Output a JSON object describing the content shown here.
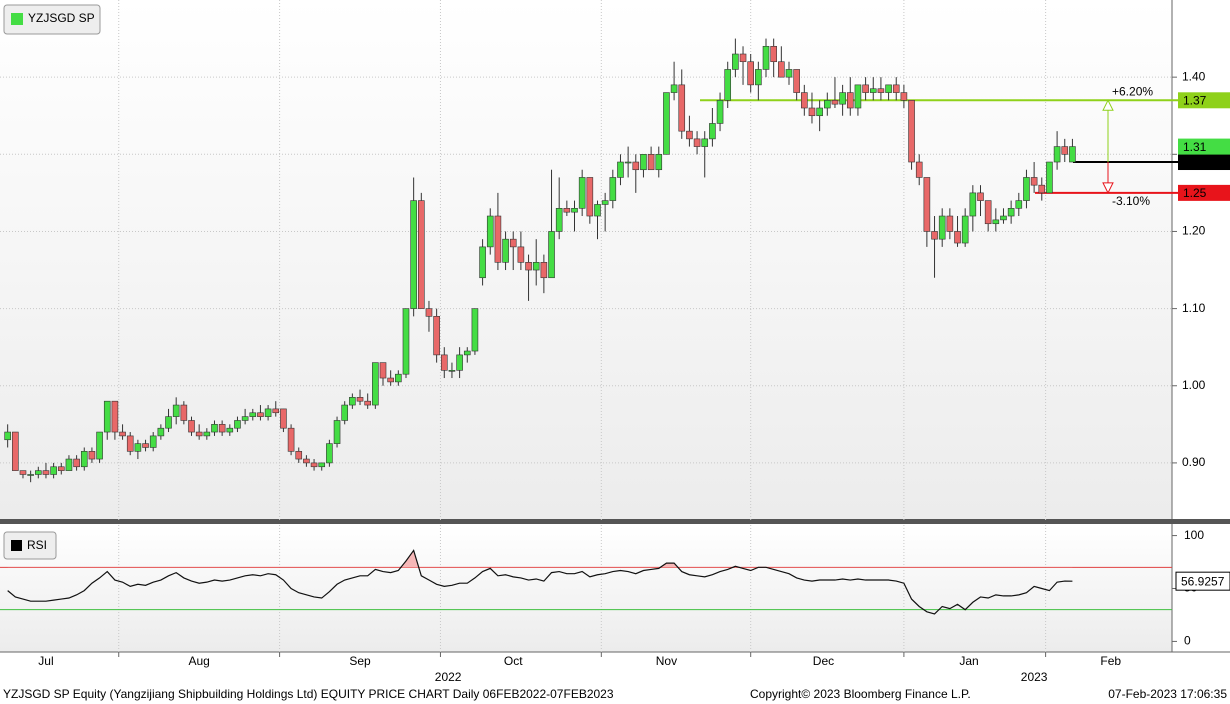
{
  "chart_data": {
    "type": "candlestick",
    "legend": "YZJSGD SP",
    "up_color": "#44dd44",
    "down_color": "#e86868",
    "xlim": [
      -1,
      152
    ],
    "xticks": [
      {
        "value": 5,
        "label": "Jul"
      },
      {
        "value": 25,
        "label": "Aug"
      },
      {
        "value": 46,
        "label": "Sep"
      },
      {
        "value": 66,
        "label": "Oct"
      },
      {
        "value": 86,
        "label": "Nov"
      },
      {
        "value": 106.5,
        "label": "Dec"
      },
      {
        "value": 125.5,
        "label": "Jan"
      },
      {
        "value": 144,
        "label": "Feb"
      }
    ],
    "years": [
      {
        "value": 57.5,
        "label": "2022"
      },
      {
        "value": 134,
        "label": "2023"
      }
    ],
    "xgrid": [
      14.5,
      35.5,
      56.5,
      77.5,
      97,
      117,
      135.5
    ],
    "ylim": [
      0.826,
      1.5
    ],
    "yticks": [
      {
        "value": 0.9,
        "label": "0.90"
      },
      {
        "value": 1.0,
        "label": "1.00"
      },
      {
        "value": 1.1,
        "label": "1.10"
      },
      {
        "value": 1.2,
        "label": "1.20"
      },
      {
        "value": 1.3,
        "label": "1.30"
      },
      {
        "value": 1.4,
        "label": "1.40"
      }
    ],
    "grid": true,
    "ohlc": [
      [
        0.93,
        0.95,
        0.92,
        0.94
      ],
      [
        0.94,
        0.94,
        0.89,
        0.89
      ],
      [
        0.89,
        0.89,
        0.88,
        0.885
      ],
      [
        0.885,
        0.89,
        0.875,
        0.885
      ],
      [
        0.885,
        0.895,
        0.88,
        0.89
      ],
      [
        0.89,
        0.9,
        0.88,
        0.885
      ],
      [
        0.885,
        0.9,
        0.88,
        0.895
      ],
      [
        0.895,
        0.9,
        0.885,
        0.89
      ],
      [
        0.89,
        0.91,
        0.89,
        0.905
      ],
      [
        0.905,
        0.91,
        0.89,
        0.895
      ],
      [
        0.895,
        0.92,
        0.89,
        0.915
      ],
      [
        0.915,
        0.92,
        0.9,
        0.905
      ],
      [
        0.905,
        0.94,
        0.9,
        0.94
      ],
      [
        0.94,
        0.98,
        0.93,
        0.98
      ],
      [
        0.98,
        0.98,
        0.93,
        0.94
      ],
      [
        0.94,
        0.95,
        0.93,
        0.935
      ],
      [
        0.935,
        0.94,
        0.91,
        0.915
      ],
      [
        0.915,
        0.93,
        0.905,
        0.925
      ],
      [
        0.925,
        0.93,
        0.915,
        0.92
      ],
      [
        0.92,
        0.94,
        0.915,
        0.935
      ],
      [
        0.935,
        0.95,
        0.93,
        0.945
      ],
      [
        0.945,
        0.97,
        0.94,
        0.96
      ],
      [
        0.96,
        0.985,
        0.95,
        0.975
      ],
      [
        0.975,
        0.98,
        0.95,
        0.955
      ],
      [
        0.955,
        0.96,
        0.935,
        0.94
      ],
      [
        0.94,
        0.95,
        0.93,
        0.935
      ],
      [
        0.935,
        0.945,
        0.93,
        0.94
      ],
      [
        0.94,
        0.955,
        0.935,
        0.95
      ],
      [
        0.95,
        0.955,
        0.935,
        0.94
      ],
      [
        0.94,
        0.95,
        0.935,
        0.945
      ],
      [
        0.945,
        0.96,
        0.94,
        0.955
      ],
      [
        0.955,
        0.97,
        0.95,
        0.96
      ],
      [
        0.96,
        0.97,
        0.955,
        0.965
      ],
      [
        0.965,
        0.975,
        0.955,
        0.96
      ],
      [
        0.96,
        0.975,
        0.955,
        0.97
      ],
      [
        0.97,
        0.98,
        0.96,
        0.965
      ],
      [
        0.97,
        0.97,
        0.94,
        0.945
      ],
      [
        0.945,
        0.95,
        0.91,
        0.915
      ],
      [
        0.915,
        0.92,
        0.9,
        0.905
      ],
      [
        0.905,
        0.91,
        0.895,
        0.9
      ],
      [
        0.9,
        0.905,
        0.89,
        0.895
      ],
      [
        0.895,
        0.9,
        0.89,
        0.9
      ],
      [
        0.9,
        0.93,
        0.895,
        0.925
      ],
      [
        0.925,
        0.96,
        0.92,
        0.955
      ],
      [
        0.955,
        0.98,
        0.95,
        0.975
      ],
      [
        0.975,
        0.99,
        0.97,
        0.985
      ],
      [
        0.985,
        0.995,
        0.975,
        0.98
      ],
      [
        0.98,
        0.99,
        0.97,
        0.975
      ],
      [
        0.975,
        1.03,
        0.97,
        1.03
      ],
      [
        1.03,
        1.03,
        1.0,
        1.01
      ],
      [
        1.01,
        1.02,
        1.0,
        1.005
      ],
      [
        1.005,
        1.02,
        1.0,
        1.015
      ],
      [
        1.015,
        1.1,
        1.01,
        1.1
      ],
      [
        1.1,
        1.27,
        1.09,
        1.24
      ],
      [
        1.24,
        1.25,
        1.1,
        1.1
      ],
      [
        1.1,
        1.11,
        1.07,
        1.09
      ],
      [
        1.09,
        1.1,
        1.03,
        1.04
      ],
      [
        1.04,
        1.05,
        1.01,
        1.02
      ],
      [
        1.02,
        1.03,
        1.01,
        1.02
      ],
      [
        1.02,
        1.05,
        1.01,
        1.04
      ],
      [
        1.04,
        1.05,
        1.03,
        1.045
      ],
      [
        1.045,
        1.1,
        1.04,
        1.1
      ],
      [
        1.14,
        1.19,
        1.13,
        1.18
      ],
      [
        1.18,
        1.23,
        1.17,
        1.22
      ],
      [
        1.22,
        1.25,
        1.15,
        1.16
      ],
      [
        1.16,
        1.2,
        1.15,
        1.19
      ],
      [
        1.19,
        1.2,
        1.15,
        1.18
      ],
      [
        1.18,
        1.2,
        1.15,
        1.16
      ],
      [
        1.16,
        1.17,
        1.11,
        1.15
      ],
      [
        1.15,
        1.19,
        1.13,
        1.16
      ],
      [
        1.16,
        1.17,
        1.12,
        1.14
      ],
      [
        1.14,
        1.28,
        1.14,
        1.2
      ],
      [
        1.2,
        1.27,
        1.19,
        1.23
      ],
      [
        1.23,
        1.24,
        1.22,
        1.225
      ],
      [
        1.225,
        1.24,
        1.2,
        1.23
      ],
      [
        1.23,
        1.28,
        1.22,
        1.27
      ],
      [
        1.27,
        1.27,
        1.21,
        1.22
      ],
      [
        1.22,
        1.24,
        1.19,
        1.235
      ],
      [
        1.235,
        1.25,
        1.2,
        1.24
      ],
      [
        1.24,
        1.28,
        1.23,
        1.27
      ],
      [
        1.27,
        1.3,
        1.26,
        1.29
      ],
      [
        1.29,
        1.31,
        1.27,
        1.29
      ],
      [
        1.29,
        1.3,
        1.25,
        1.28
      ],
      [
        1.28,
        1.3,
        1.27,
        1.3
      ],
      [
        1.3,
        1.31,
        1.28,
        1.28
      ],
      [
        1.28,
        1.31,
        1.27,
        1.3
      ],
      [
        1.3,
        1.38,
        1.3,
        1.38
      ],
      [
        1.38,
        1.42,
        1.37,
        1.39
      ],
      [
        1.39,
        1.41,
        1.32,
        1.33
      ],
      [
        1.33,
        1.35,
        1.31,
        1.32
      ],
      [
        1.32,
        1.33,
        1.3,
        1.31
      ],
      [
        1.31,
        1.33,
        1.27,
        1.32
      ],
      [
        1.32,
        1.36,
        1.31,
        1.34
      ],
      [
        1.34,
        1.38,
        1.33,
        1.37
      ],
      [
        1.37,
        1.42,
        1.36,
        1.41
      ],
      [
        1.41,
        1.45,
        1.4,
        1.43
      ],
      [
        1.43,
        1.44,
        1.39,
        1.42
      ],
      [
        1.42,
        1.43,
        1.38,
        1.39
      ],
      [
        1.39,
        1.42,
        1.37,
        1.41
      ],
      [
        1.41,
        1.45,
        1.4,
        1.44
      ],
      [
        1.44,
        1.45,
        1.4,
        1.42
      ],
      [
        1.42,
        1.44,
        1.4,
        1.4
      ],
      [
        1.4,
        1.42,
        1.39,
        1.41
      ],
      [
        1.41,
        1.41,
        1.37,
        1.38
      ],
      [
        1.38,
        1.39,
        1.35,
        1.36
      ],
      [
        1.36,
        1.38,
        1.34,
        1.35
      ],
      [
        1.35,
        1.37,
        1.33,
        1.36
      ],
      [
        1.36,
        1.38,
        1.35,
        1.37
      ],
      [
        1.37,
        1.4,
        1.36,
        1.365
      ],
      [
        1.365,
        1.39,
        1.35,
        1.38
      ],
      [
        1.38,
        1.4,
        1.35,
        1.36
      ],
      [
        1.36,
        1.39,
        1.35,
        1.39
      ],
      [
        1.39,
        1.4,
        1.37,
        1.38
      ],
      [
        1.38,
        1.4,
        1.37,
        1.385
      ],
      [
        1.385,
        1.4,
        1.37,
        1.38
      ],
      [
        1.38,
        1.39,
        1.37,
        1.39
      ],
      [
        1.39,
        1.4,
        1.37,
        1.38
      ],
      [
        1.38,
        1.39,
        1.36,
        1.37
      ],
      [
        1.37,
        1.37,
        1.28,
        1.29
      ],
      [
        1.29,
        1.3,
        1.26,
        1.27
      ],
      [
        1.27,
        1.27,
        1.18,
        1.2
      ],
      [
        1.2,
        1.22,
        1.14,
        1.19
      ],
      [
        1.19,
        1.23,
        1.18,
        1.22
      ],
      [
        1.22,
        1.23,
        1.19,
        1.2
      ],
      [
        1.2,
        1.22,
        1.18,
        1.185
      ],
      [
        1.185,
        1.23,
        1.18,
        1.22
      ],
      [
        1.22,
        1.26,
        1.2,
        1.25
      ],
      [
        1.25,
        1.26,
        1.22,
        1.24
      ],
      [
        1.24,
        1.24,
        1.2,
        1.21
      ],
      [
        1.21,
        1.23,
        1.2,
        1.215
      ],
      [
        1.215,
        1.23,
        1.21,
        1.22
      ],
      [
        1.22,
        1.24,
        1.21,
        1.23
      ],
      [
        1.23,
        1.25,
        1.22,
        1.24
      ],
      [
        1.24,
        1.28,
        1.23,
        1.27
      ],
      [
        1.27,
        1.29,
        1.25,
        1.26
      ],
      [
        1.26,
        1.27,
        1.24,
        1.25
      ],
      [
        1.25,
        1.29,
        1.25,
        1.29
      ],
      [
        1.29,
        1.33,
        1.28,
        1.31
      ],
      [
        1.31,
        1.32,
        1.29,
        1.3
      ],
      [
        1.29,
        1.32,
        1.29,
        1.31
      ]
    ],
    "last_price": 1.31,
    "levels": [
      {
        "value": 1.37,
        "color": "#8fd11a"
      },
      {
        "value": 1.29,
        "color": "#000000"
      },
      {
        "value": 1.25,
        "color": "#e8141b"
      }
    ],
    "annotations": [
      {
        "text": "+6.20%",
        "color": "#5fae00"
      },
      {
        "text": "-3.10%",
        "color": "#e8141b"
      }
    ],
    "rsi": {
      "legend": "RSI",
      "ylim": [
        -10,
        110
      ],
      "yticks": [
        0,
        50,
        100
      ],
      "upper": 70,
      "lower": 30,
      "values": [
        48,
        42,
        40,
        38,
        38,
        38,
        39,
        40,
        41,
        44,
        48,
        55,
        60,
        66,
        58,
        56,
        52,
        54,
        53,
        56,
        58,
        62,
        65,
        60,
        57,
        55,
        56,
        58,
        57,
        58,
        60,
        62,
        63,
        62,
        64,
        63,
        58,
        50,
        46,
        44,
        42,
        41,
        47,
        54,
        58,
        60,
        62,
        62,
        68,
        66,
        65,
        67,
        76,
        86,
        62,
        58,
        54,
        52,
        53,
        55,
        55,
        60,
        66,
        69,
        62,
        63,
        61,
        60,
        58,
        59,
        57,
        65,
        66,
        64,
        64,
        66,
        61,
        63,
        64,
        66,
        67,
        66,
        64,
        67,
        68,
        69,
        74,
        74,
        66,
        63,
        62,
        61,
        63,
        66,
        68,
        71,
        69,
        67,
        70,
        70,
        68,
        66,
        64,
        60,
        58,
        57,
        58,
        58,
        58,
        59,
        58,
        59,
        58,
        58,
        58,
        58,
        57,
        55,
        40,
        33,
        28,
        26,
        33,
        31,
        35,
        30,
        37,
        42,
        41,
        44,
        43,
        43,
        44,
        46,
        52,
        50,
        48,
        56,
        57,
        56.9257
      ],
      "last_label": "56.9257"
    },
    "footer": [
      "YZJSGD SP Equity (Yangzijiang Shipbuilding Holdings Ltd) EQUITY PRICE CHART  Daily 06FEB2022-07FEB2023",
      "Copyright© 2023 Bloomberg Finance L.P.",
      "07-Feb-2023 17:06:35"
    ]
  }
}
